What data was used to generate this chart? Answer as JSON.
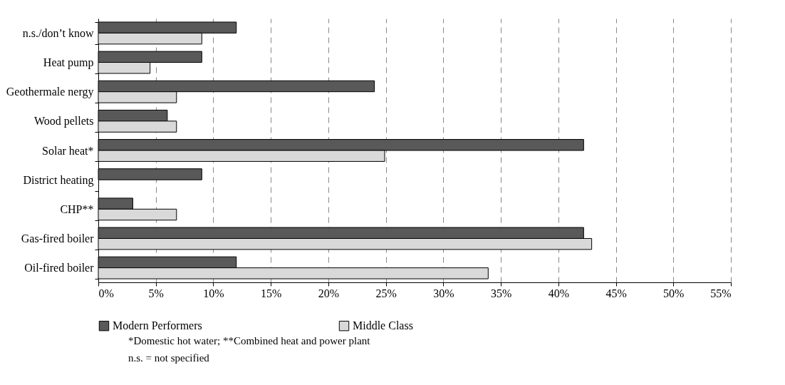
{
  "chart_data": {
    "type": "bar",
    "orientation": "horizontal",
    "categories": [
      "n.s./don’t know",
      "Heat pump",
      "Geothermale nergy",
      "Wood pellets",
      "Solar heat*",
      "District heating",
      "CHP**",
      "Gas-fired boiler",
      "Oil-fired boiler"
    ],
    "series": [
      {
        "name": "Modern Performers",
        "color": "#595959",
        "values": [
          12,
          9,
          24,
          6,
          42.2,
          9,
          3,
          42.2,
          12
        ]
      },
      {
        "name": "Middle Class",
        "color": "#d9d9d9",
        "values": [
          9,
          4.5,
          6.8,
          6.8,
          24.9,
          null,
          6.8,
          42.9,
          33.9
        ]
      }
    ],
    "xlim": [
      0,
      55
    ],
    "xticks": [
      {
        "value": 0,
        "label": "0%"
      },
      {
        "value": 5,
        "label": "5%"
      },
      {
        "value": 10,
        "label": "10%"
      },
      {
        "value": 15,
        "label": "15%"
      },
      {
        "value": 20,
        "label": "20%"
      },
      {
        "value": 25,
        "label": "25%"
      },
      {
        "value": 30,
        "label": "30%"
      },
      {
        "value": 35,
        "label": "35%"
      },
      {
        "value": 40,
        "label": "40%"
      },
      {
        "value": 45,
        "label": "45%"
      },
      {
        "value": 50,
        "label": "50%"
      },
      {
        "value": 55,
        "label": "55%"
      }
    ],
    "grid": "x",
    "legend": "bottom",
    "annotations": [
      "*Domestic hot water; **Combined heat and power plant",
      "n.s. = not specified"
    ]
  }
}
